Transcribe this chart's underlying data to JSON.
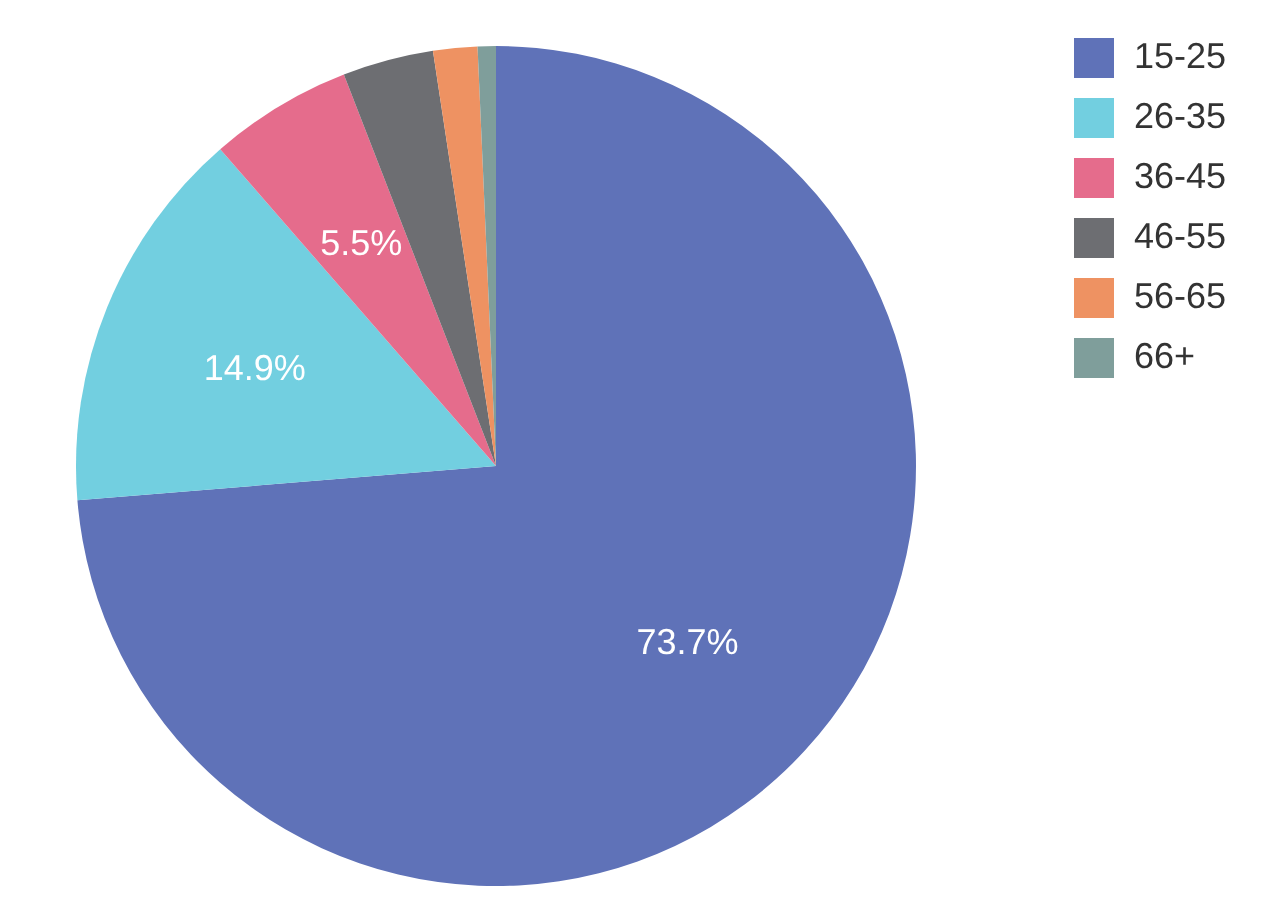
{
  "chart_data": {
    "type": "pie",
    "categories": [
      "15-25",
      "26-35",
      "36-45",
      "46-55",
      "56-65",
      "66+"
    ],
    "values": [
      73.7,
      14.9,
      5.5,
      3.5,
      1.7,
      0.7
    ],
    "colors": [
      "#5f72b8",
      "#72cfe0",
      "#e56c8c",
      "#6d6e72",
      "#ee9262",
      "#7f9e9b"
    ],
    "value_labels": [
      "73.7%",
      "14.9%",
      "5.5%",
      null,
      null,
      null
    ],
    "legend": "top right"
  }
}
